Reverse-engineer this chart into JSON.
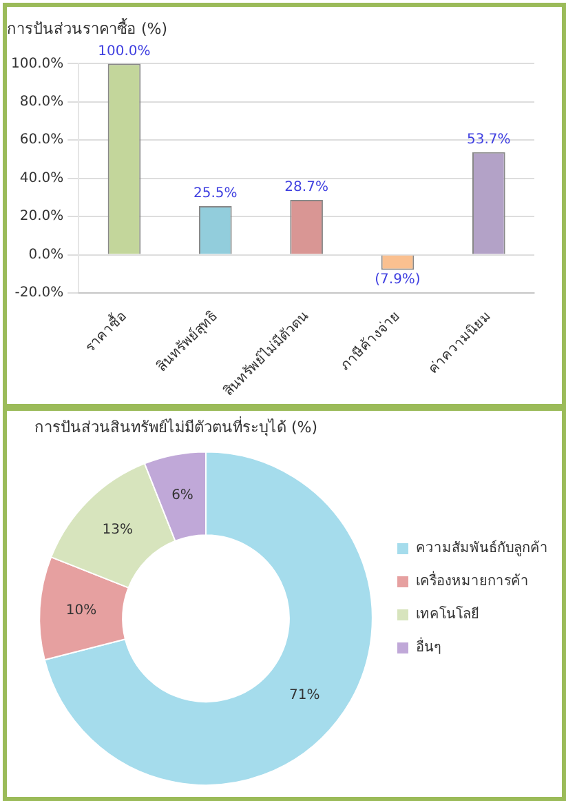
{
  "chart_data": [
    {
      "type": "bar",
      "title": "การปันส่วนราคาซื้อ (%)",
      "categories": [
        "ราคาซื้อ",
        "สินทรัพย์สุทธิ",
        "สินทรัพย์ไม่มีตัวตน",
        "ภาษีค้างจ่าย",
        "ค่าความนิยม"
      ],
      "values": [
        100,
        25.5,
        28.7,
        -7.9,
        53.7
      ],
      "colors": [
        "#c3d69b",
        "#92cddc",
        "#d99694",
        "#fac090",
        "#b3a2c7"
      ],
      "value_labels": [
        "100.0%",
        "25.5%",
        "28.7%",
        "(7.9%)",
        "53.7%"
      ],
      "ylim": [
        -20,
        100
      ],
      "yticks": [
        {
          "value": -20,
          "label": "-20.0%"
        },
        {
          "value": 0,
          "label": "0.0%"
        },
        {
          "value": 20,
          "label": "20.0%"
        },
        {
          "value": 40,
          "label": "40.0%"
        },
        {
          "value": 60,
          "label": "60.0%"
        },
        {
          "value": 80,
          "label": "80.0%"
        },
        {
          "value": 100,
          "label": "100.0%"
        }
      ],
      "grid": "y",
      "legend": false
    },
    {
      "type": "donut",
      "title": "การปันส่วนสินทรัพย์ไม่มีตัวตนที่ระบุได้ (%)",
      "categories": [
        "ความสัมพันธ์กับลูกค้า",
        "เครื่องหมายการค้า",
        "เทคโนโลยี",
        "อื่นๆ"
      ],
      "values": [
        71,
        10,
        13,
        6
      ],
      "colors": [
        "#a5dcec",
        "#e6a0a0",
        "#d7e4bd",
        "#c0a8d8"
      ],
      "value_labels": [
        "71%",
        "10%",
        "13%",
        "6%"
      ],
      "legend": "right"
    }
  ]
}
